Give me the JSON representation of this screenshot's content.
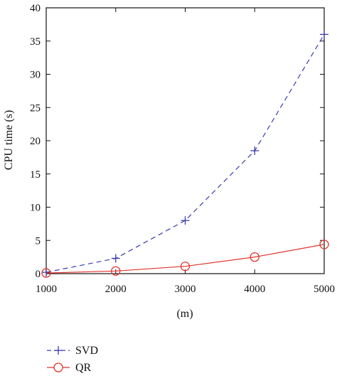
{
  "chart_data": {
    "type": "line",
    "title": "",
    "xlabel": "(m)",
    "ylabel": "CPU time (s)",
    "x": [
      1000,
      2000,
      3000,
      4000,
      5000
    ],
    "xlim": [
      1000,
      5000
    ],
    "ylim": [
      0,
      40
    ],
    "xticks": [
      "1000",
      "2000",
      "3000",
      "4000",
      "5000"
    ],
    "yticks": [
      "0",
      "5",
      "10",
      "15",
      "20",
      "25",
      "30",
      "35",
      "40"
    ],
    "grid": false,
    "legend_position": "bottom-left, below plot",
    "series": [
      {
        "name": "SVD",
        "values": [
          0.2,
          2.3,
          8.0,
          18.5,
          36.0
        ],
        "color": "#3b3fb0",
        "line_style": "dashed",
        "marker": "plus"
      },
      {
        "name": "QR",
        "values": [
          0.1,
          0.4,
          1.1,
          2.5,
          4.4
        ],
        "color": "#e0352b",
        "line_style": "solid",
        "marker": "circle"
      }
    ]
  }
}
